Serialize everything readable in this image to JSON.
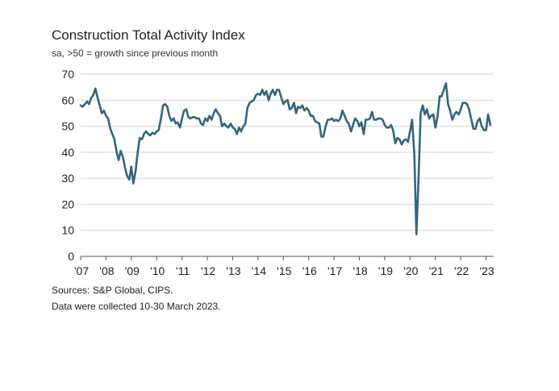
{
  "chart_data": {
    "type": "line",
    "title": "Construction Total Activity Index",
    "subtitle": "sa, >50 = growth since previous month",
    "xlabel": "",
    "ylabel": "",
    "ylim": [
      0,
      70
    ],
    "yticks": [
      "0",
      "10",
      "20",
      "30",
      "40",
      "50",
      "60",
      "70"
    ],
    "xticks": [
      "'07",
      "'08",
      "'09",
      "'10",
      "'11",
      "'12",
      "'13",
      "'14",
      "'15",
      "'16",
      "'17",
      "'18",
      "'19",
      "'20",
      "'21",
      "'22",
      "'23"
    ],
    "grid": true,
    "line_color": "#33667f",
    "series": [
      {
        "points": [
          [
            2007.0,
            58
          ],
          [
            2007.08,
            57.5
          ],
          [
            2007.17,
            58.5
          ],
          [
            2007.25,
            59.5
          ],
          [
            2007.33,
            58.5
          ],
          [
            2007.42,
            61
          ],
          [
            2007.5,
            62
          ],
          [
            2007.58,
            64.5
          ],
          [
            2007.67,
            61
          ],
          [
            2007.75,
            58
          ],
          [
            2007.83,
            55
          ],
          [
            2007.92,
            56
          ],
          [
            2008.0,
            54
          ],
          [
            2008.08,
            53
          ],
          [
            2008.17,
            49
          ],
          [
            2008.25,
            47
          ],
          [
            2008.33,
            45
          ],
          [
            2008.42,
            40
          ],
          [
            2008.5,
            37
          ],
          [
            2008.58,
            40.5
          ],
          [
            2008.67,
            38
          ],
          [
            2008.75,
            34
          ],
          [
            2008.83,
            31
          ],
          [
            2008.92,
            29.5
          ],
          [
            2009.0,
            34.5
          ],
          [
            2009.08,
            28
          ],
          [
            2009.17,
            33
          ],
          [
            2009.25,
            40
          ],
          [
            2009.33,
            45.5
          ],
          [
            2009.42,
            45
          ],
          [
            2009.5,
            47
          ],
          [
            2009.58,
            48
          ],
          [
            2009.67,
            47
          ],
          [
            2009.75,
            46.5
          ],
          [
            2009.83,
            47.5
          ],
          [
            2009.92,
            47
          ],
          [
            2010.0,
            48
          ],
          [
            2010.08,
            48.5
          ],
          [
            2010.17,
            53
          ],
          [
            2010.25,
            58
          ],
          [
            2010.33,
            58.5
          ],
          [
            2010.42,
            57.5
          ],
          [
            2010.5,
            54
          ],
          [
            2010.58,
            52
          ],
          [
            2010.67,
            53
          ],
          [
            2010.75,
            51
          ],
          [
            2010.83,
            51.5
          ],
          [
            2010.92,
            49.5
          ],
          [
            2011.0,
            53
          ],
          [
            2011.08,
            56
          ],
          [
            2011.17,
            56.5
          ],
          [
            2011.25,
            53.5
          ],
          [
            2011.33,
            53
          ],
          [
            2011.42,
            53.5
          ],
          [
            2011.5,
            53.5
          ],
          [
            2011.58,
            53
          ],
          [
            2011.67,
            53
          ],
          [
            2011.75,
            51
          ],
          [
            2011.83,
            50.5
          ],
          [
            2011.92,
            53
          ],
          [
            2012.0,
            52
          ],
          [
            2012.08,
            54
          ],
          [
            2012.17,
            52.5
          ],
          [
            2012.25,
            55
          ],
          [
            2012.33,
            56.5
          ],
          [
            2012.42,
            55
          ],
          [
            2012.5,
            54
          ],
          [
            2012.58,
            50
          ],
          [
            2012.67,
            51
          ],
          [
            2012.75,
            50
          ],
          [
            2012.83,
            49.5
          ],
          [
            2012.92,
            51
          ],
          [
            2013.0,
            49.5
          ],
          [
            2013.08,
            49
          ],
          [
            2013.17,
            47
          ],
          [
            2013.25,
            49.5
          ],
          [
            2013.33,
            48
          ],
          [
            2013.42,
            50
          ],
          [
            2013.5,
            51
          ],
          [
            2013.58,
            57
          ],
          [
            2013.67,
            59
          ],
          [
            2013.75,
            59.5
          ],
          [
            2013.83,
            60
          ],
          [
            2013.92,
            62
          ],
          [
            2014.0,
            62.5
          ],
          [
            2014.08,
            62
          ],
          [
            2014.17,
            64
          ],
          [
            2014.25,
            62
          ],
          [
            2014.33,
            63.5
          ],
          [
            2014.42,
            60
          ],
          [
            2014.5,
            62.5
          ],
          [
            2014.58,
            64
          ],
          [
            2014.67,
            62
          ],
          [
            2014.75,
            64
          ],
          [
            2014.83,
            64
          ],
          [
            2014.92,
            61
          ],
          [
            2015.0,
            58.5
          ],
          [
            2015.08,
            59.5
          ],
          [
            2015.17,
            60
          ],
          [
            2015.25,
            56.5
          ],
          [
            2015.33,
            57
          ],
          [
            2015.42,
            59
          ],
          [
            2015.5,
            55
          ],
          [
            2015.58,
            57.5
          ],
          [
            2015.67,
            57
          ],
          [
            2015.75,
            58
          ],
          [
            2015.83,
            56
          ],
          [
            2015.92,
            57
          ],
          [
            2016.0,
            56
          ],
          [
            2016.08,
            54
          ],
          [
            2016.17,
            54
          ],
          [
            2016.25,
            52
          ],
          [
            2016.33,
            51.5
          ],
          [
            2016.42,
            51
          ],
          [
            2016.5,
            46
          ],
          [
            2016.58,
            46
          ],
          [
            2016.67,
            50
          ],
          [
            2016.75,
            52.5
          ],
          [
            2016.83,
            52.5
          ],
          [
            2016.92,
            53
          ],
          [
            2017.0,
            52
          ],
          [
            2017.08,
            52.5
          ],
          [
            2017.17,
            52
          ],
          [
            2017.25,
            53
          ],
          [
            2017.33,
            56
          ],
          [
            2017.42,
            54
          ],
          [
            2017.5,
            52
          ],
          [
            2017.58,
            51
          ],
          [
            2017.67,
            48
          ],
          [
            2017.75,
            50.5
          ],
          [
            2017.83,
            53
          ],
          [
            2017.92,
            52
          ],
          [
            2018.0,
            50
          ],
          [
            2018.08,
            51.5
          ],
          [
            2018.17,
            47
          ],
          [
            2018.25,
            52.5
          ],
          [
            2018.33,
            52.5
          ],
          [
            2018.42,
            53
          ],
          [
            2018.5,
            55.5
          ],
          [
            2018.58,
            52.5
          ],
          [
            2018.67,
            52.5
          ],
          [
            2018.75,
            53
          ],
          [
            2018.83,
            53
          ],
          [
            2018.92,
            52.5
          ],
          [
            2019.0,
            50.5
          ],
          [
            2019.08,
            49.5
          ],
          [
            2019.17,
            49.5
          ],
          [
            2019.25,
            50.5
          ],
          [
            2019.33,
            48.5
          ],
          [
            2019.42,
            43.5
          ],
          [
            2019.5,
            45.5
          ],
          [
            2019.58,
            45
          ],
          [
            2019.67,
            43
          ],
          [
            2019.75,
            44.5
          ],
          [
            2019.83,
            45
          ],
          [
            2019.92,
            44
          ],
          [
            2020.0,
            48
          ],
          [
            2020.08,
            52.5
          ],
          [
            2020.17,
            39
          ],
          [
            2020.25,
            8.5
          ],
          [
            2020.33,
            28.5
          ],
          [
            2020.42,
            55
          ],
          [
            2020.5,
            58
          ],
          [
            2020.58,
            54.5
          ],
          [
            2020.67,
            56.5
          ],
          [
            2020.75,
            53
          ],
          [
            2020.83,
            54
          ],
          [
            2020.92,
            54.5
          ],
          [
            2021.0,
            49.5
          ],
          [
            2021.08,
            53.5
          ],
          [
            2021.17,
            61.5
          ],
          [
            2021.25,
            61.5
          ],
          [
            2021.33,
            64
          ],
          [
            2021.42,
            66.5
          ],
          [
            2021.5,
            58.5
          ],
          [
            2021.58,
            56
          ],
          [
            2021.67,
            52.5
          ],
          [
            2021.75,
            54.5
          ],
          [
            2021.83,
            55.5
          ],
          [
            2021.92,
            54.5
          ],
          [
            2022.0,
            56.5
          ],
          [
            2022.08,
            59
          ],
          [
            2022.17,
            59
          ],
          [
            2022.25,
            58.5
          ],
          [
            2022.33,
            56.5
          ],
          [
            2022.42,
            52.5
          ],
          [
            2022.5,
            49
          ],
          [
            2022.58,
            49
          ],
          [
            2022.67,
            52
          ],
          [
            2022.75,
            53
          ],
          [
            2022.83,
            50
          ],
          [
            2022.92,
            48.5
          ],
          [
            2023.0,
            48.5
          ],
          [
            2023.08,
            54.5
          ],
          [
            2023.17,
            50.5
          ]
        ]
      }
    ]
  },
  "footnotes": {
    "sources": "Sources: S&P Global, CIPS.",
    "collected": "Data were collected 10-30 March 2023."
  }
}
